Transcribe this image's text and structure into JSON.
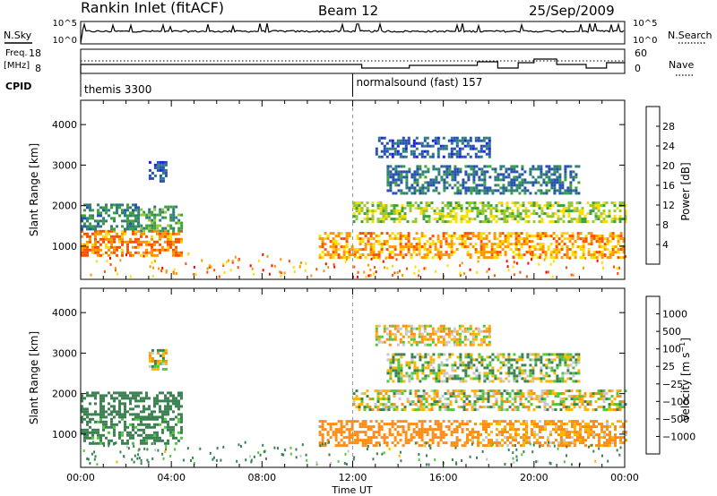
{
  "header": {
    "station": "Rankin Inlet (fitACF)",
    "beam": "Beam 12",
    "date": "25/Sep/2009"
  },
  "left_labels": {
    "nsky": "N.Sky",
    "freq_line1": "Freq.",
    "freq_line2": "[MHz]",
    "cpid": "CPID"
  },
  "right_labels": {
    "nsearch": "N.Search",
    "nave": "Nave"
  },
  "nsky_ticks": [
    "10^5",
    "10^0"
  ],
  "nsearch_ticks": [
    "10^5",
    "10^0"
  ],
  "freq_ticks": [
    "18",
    "8"
  ],
  "nave_ticks": [
    "60",
    "0"
  ],
  "cpid_segments": [
    {
      "label": "themis 3300",
      "start": 0
    },
    {
      "label": "normalsound (fast) 157",
      "start": 12
    }
  ],
  "colors": {
    "power": [
      "#1e1ee6",
      "#2850b4",
      "#2d7d7d",
      "#3ca03c",
      "#96c832",
      "#ffdc00",
      "#ff9600",
      "#ff5000",
      "#ff0000"
    ],
    "velocity": [
      "#ff0000",
      "#ff3c00",
      "#ff8c14",
      "#ffb400",
      "#c8c8c8",
      "#c8c8c8",
      "#50c83c",
      "#3c8250",
      "#2864b4",
      "#1e28d2"
    ]
  },
  "chart_data": [
    {
      "type": "heatmap",
      "name": "power",
      "xlabel": "",
      "ylabel": "Slant Range [km]",
      "xlim": [
        0,
        24
      ],
      "ylim": [
        180,
        4600
      ],
      "xticks": [
        "00:00",
        "04:00",
        "08:00",
        "12:00",
        "16:00",
        "20:00",
        "00:00"
      ],
      "yticks": [
        1000,
        2000,
        3000,
        4000
      ],
      "colorbar_label": "Power [dB]",
      "colorbar_ticks": [
        "28",
        "24",
        "20",
        "16",
        "12",
        "8",
        "4"
      ],
      "echo_regions": [
        {
          "t": [
            0,
            4.5
          ],
          "range": [
            750,
            1400
          ],
          "value": 26
        },
        {
          "t": [
            0,
            2.5
          ],
          "range": [
            1400,
            2050
          ],
          "value": 12
        },
        {
          "t": [
            2.5,
            4.5
          ],
          "range": [
            1400,
            2000
          ],
          "value": 14
        },
        {
          "t": [
            3,
            3.8
          ],
          "range": [
            2600,
            3100
          ],
          "value": 8
        },
        {
          "t": [
            10.5,
            24
          ],
          "range": [
            750,
            1350
          ],
          "value": 24
        },
        {
          "t": [
            12,
            24
          ],
          "range": [
            1600,
            2100
          ],
          "value": 18
        },
        {
          "t": [
            13,
            18
          ],
          "range": [
            3200,
            3700
          ],
          "value": 8
        },
        {
          "t": [
            13.5,
            22
          ],
          "range": [
            2300,
            3000
          ],
          "value": 10
        }
      ]
    },
    {
      "type": "heatmap",
      "name": "velocity",
      "xlabel": "Time UT",
      "ylabel": "Slant Range [km]",
      "xlim": [
        0,
        24
      ],
      "ylim": [
        180,
        4600
      ],
      "xticks": [
        "00:00",
        "04:00",
        "08:00",
        "12:00",
        "16:00",
        "20:00",
        "00:00"
      ],
      "yticks": [
        1000,
        2000,
        3000,
        4000
      ],
      "colorbar_label": "Velocity [m s^-1]",
      "colorbar_ticks": [
        "1000",
        "500",
        "100",
        "25",
        "−25",
        "−100",
        "−500",
        "−1000"
      ],
      "echo_regions": [
        {
          "t": [
            0,
            4.5
          ],
          "range": [
            750,
            1400
          ],
          "value": 200
        },
        {
          "t": [
            0,
            4.5
          ],
          "range": [
            1400,
            2050
          ],
          "value": 300
        },
        {
          "t": [
            3,
            3.8
          ],
          "range": [
            2600,
            3100
          ],
          "value": 0
        },
        {
          "t": [
            10.5,
            17
          ],
          "range": [
            750,
            1350
          ],
          "value": -300
        },
        {
          "t": [
            17,
            24
          ],
          "range": [
            750,
            1350
          ],
          "value": -150
        },
        {
          "t": [
            12,
            24
          ],
          "range": [
            1600,
            2100
          ],
          "value": 0
        },
        {
          "t": [
            13,
            18
          ],
          "range": [
            3200,
            3700
          ],
          "value": -50
        },
        {
          "t": [
            13.5,
            22
          ],
          "range": [
            2300,
            3000
          ],
          "value": 50
        }
      ]
    }
  ]
}
